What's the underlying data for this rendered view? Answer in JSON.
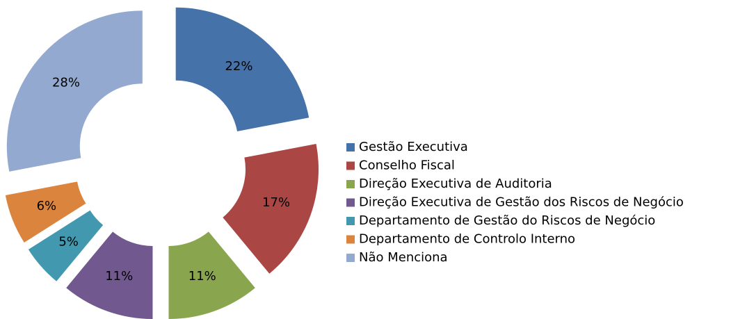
{
  "chart_data": {
    "type": "pie",
    "categories": [
      "Gestão Executiva",
      "Conselho Fiscal",
      "Direção Executiva de Auditoria",
      "Direção Executiva de Gestão dos Riscos de Negócio",
      "Departamento de Gestão do Riscos de Negócio",
      "Departamento de Controlo Interno",
      "Não Menciona"
    ],
    "values": [
      22,
      17,
      11,
      11,
      5,
      6,
      28
    ],
    "value_labels": [
      "22%",
      "17%",
      "11%",
      "11%",
      "5%",
      "6%",
      "28%"
    ],
    "colors": [
      "#4672aa",
      "#aa4644",
      "#89a54e",
      "#71588f",
      "#4198af",
      "#db843d",
      "#93a9cf"
    ],
    "legend": "right"
  }
}
